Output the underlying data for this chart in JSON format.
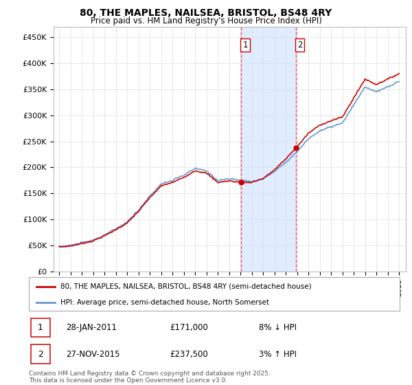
{
  "title": "80, THE MAPLES, NAILSEA, BRISTOL, BS48 4RY",
  "subtitle": "Price paid vs. HM Land Registry's House Price Index (HPI)",
  "ylim": [
    0,
    470000
  ],
  "yticks": [
    0,
    50000,
    100000,
    150000,
    200000,
    250000,
    300000,
    350000,
    400000,
    450000
  ],
  "ytick_labels": [
    "£0",
    "£50K",
    "£100K",
    "£150K",
    "£200K",
    "£250K",
    "£300K",
    "£350K",
    "£400K",
    "£450K"
  ],
  "line_color_red": "#cc0000",
  "line_color_blue": "#6699cc",
  "shaded_color": "#cce0ff",
  "dashed_color": "#ff4444",
  "t1_year": 2011.07,
  "t2_year": 2015.9,
  "t1_price": 171000,
  "t2_price": 237500,
  "transaction1_date": "28-JAN-2011",
  "transaction1_pct": "8% ↓ HPI",
  "transaction1_price": "£171,000",
  "transaction2_date": "27-NOV-2015",
  "transaction2_pct": "3% ↑ HPI",
  "transaction2_price": "£237,500",
  "legend_line1": "80, THE MAPLES, NAILSEA, BRISTOL, BS48 4RY (semi-detached house)",
  "legend_line2": "HPI: Average price, semi-detached house, North Somerset",
  "footer": "Contains HM Land Registry data © Crown copyright and database right 2025.\nThis data is licensed under the Open Government Licence v3.0.",
  "background_color": "#ffffff",
  "grid_color": "#dddddd",
  "hpi_anchors_years": [
    1995.0,
    1996.0,
    1997.0,
    1998.0,
    1999.0,
    2000.0,
    2001.0,
    2002.0,
    2003.0,
    2004.0,
    2005.0,
    2006.0,
    2007.0,
    2008.0,
    2009.0,
    2010.0,
    2011.0,
    2012.0,
    2013.0,
    2014.0,
    2015.0,
    2016.0,
    2017.0,
    2018.0,
    2019.0,
    2020.0,
    2021.0,
    2022.0,
    2023.0,
    2024.0,
    2025.0
  ],
  "hpi_anchors_vals": [
    48000,
    50000,
    55000,
    60000,
    70000,
    82000,
    95000,
    118000,
    145000,
    168000,
    175000,
    185000,
    198000,
    193000,
    175000,
    178000,
    175000,
    173000,
    178000,
    192000,
    210000,
    230000,
    255000,
    270000,
    278000,
    285000,
    320000,
    355000,
    345000,
    355000,
    365000
  ]
}
